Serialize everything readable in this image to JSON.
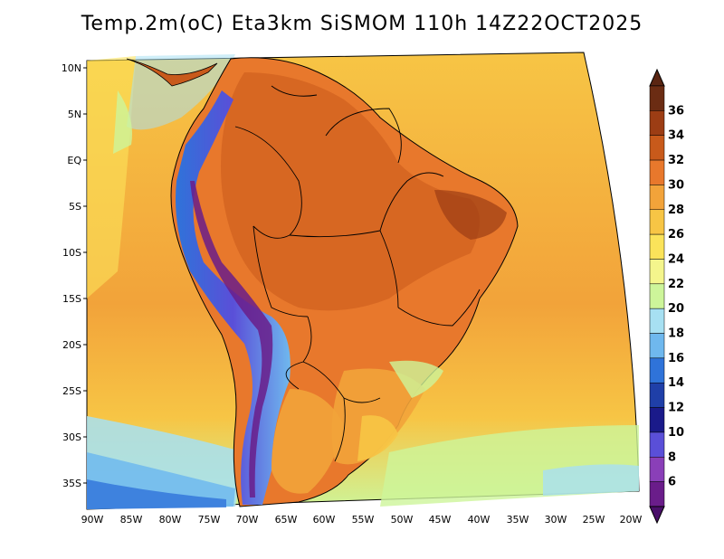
{
  "title": "Temp.2m(oC) Eta3km SiSMOM 110h 14Z22OCT2025",
  "lat_labels": [
    "10N",
    "5N",
    "EQ",
    "5S",
    "10S",
    "15S",
    "20S",
    "25S",
    "30S",
    "35S"
  ],
  "lon_labels": [
    "90W",
    "85W",
    "80W",
    "75W",
    "70W",
    "65W",
    "60W",
    "55W",
    "50W",
    "45W",
    "40W",
    "35W",
    "30W",
    "25W",
    "20W"
  ],
  "colorbar": {
    "labels": [
      "36",
      "34",
      "32",
      "30",
      "28",
      "26",
      "24",
      "22",
      "20",
      "18",
      "16",
      "14",
      "12",
      "10",
      "8",
      "6"
    ],
    "colors": [
      "#6b2c13",
      "#9c3d14",
      "#c85a1b",
      "#e8782c",
      "#f2a33a",
      "#f7c545",
      "#fbe35a",
      "#f4f58c",
      "#cdf59a",
      "#a7e0f2",
      "#6fb8ee",
      "#2f73d9",
      "#1f3fa8",
      "#1a1a8a",
      "#5a4fd8",
      "#8a3fb8",
      "#6a1d8a"
    ],
    "top_color": "#5a2512",
    "bottom_color": "#4a0f6a"
  }
}
